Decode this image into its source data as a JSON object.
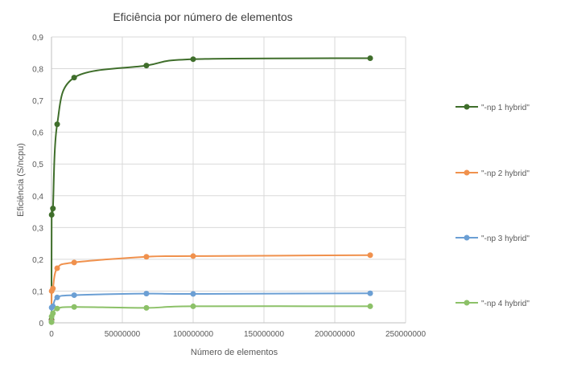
{
  "chart_data": {
    "type": "scatter",
    "title": "Eficiência por número  de elementos",
    "xlabel": "Número  de elementos",
    "ylabel": "Eficiência (S/ncpu)",
    "xlim": [
      0,
      250000000
    ],
    "ylim": [
      0,
      0.9
    ],
    "xticks": [
      0,
      50000000,
      100000000,
      150000000,
      200000000,
      250000000
    ],
    "yticks": [
      0,
      0.1,
      0.2,
      0.3,
      0.4,
      0.5,
      0.6,
      0.7,
      0.8,
      0.9
    ],
    "xtick_labels": [
      "0",
      "50000000",
      "100000000",
      "150000000",
      "200000000",
      "250000000"
    ],
    "ytick_labels": [
      "0",
      "0,1",
      "0,2",
      "0,3",
      "0,4",
      "0,5",
      "0,6",
      "0,7",
      "0,8",
      "0,9"
    ],
    "grid": true,
    "legend_position": "right",
    "series": [
      {
        "name": "\"-np 1 hybrid\"",
        "color": "#3f6e2b",
        "x": [
          10000,
          100000,
          1000000,
          4000000,
          16000000,
          67000000,
          100000000,
          225000000
        ],
        "y": [
          0.01,
          0.34,
          0.36,
          0.625,
          0.772,
          0.81,
          0.83,
          0.833
        ]
      },
      {
        "name": "\"-np 2 hybrid\"",
        "color": "#f0914d",
        "x": [
          10000,
          100000,
          1000000,
          4000000,
          16000000,
          67000000,
          100000000,
          225000000
        ],
        "y": [
          0.005,
          0.1,
          0.108,
          0.172,
          0.19,
          0.208,
          0.21,
          0.213
        ]
      },
      {
        "name": "\"-np 3 hybrid\"",
        "color": "#6b9fd4",
        "x": [
          10000,
          100000,
          1000000,
          4000000,
          16000000,
          67000000,
          100000000,
          225000000
        ],
        "y": [
          0.003,
          0.048,
          0.052,
          0.08,
          0.087,
          0.092,
          0.091,
          0.093
        ]
      },
      {
        "name": "\"-np 4 hybrid\"",
        "color": "#8cc168",
        "x": [
          10000,
          100000,
          1000000,
          4000000,
          16000000,
          67000000,
          100000000,
          225000000
        ],
        "y": [
          0.002,
          0.02,
          0.03,
          0.045,
          0.05,
          0.047,
          0.052,
          0.052
        ]
      }
    ]
  }
}
